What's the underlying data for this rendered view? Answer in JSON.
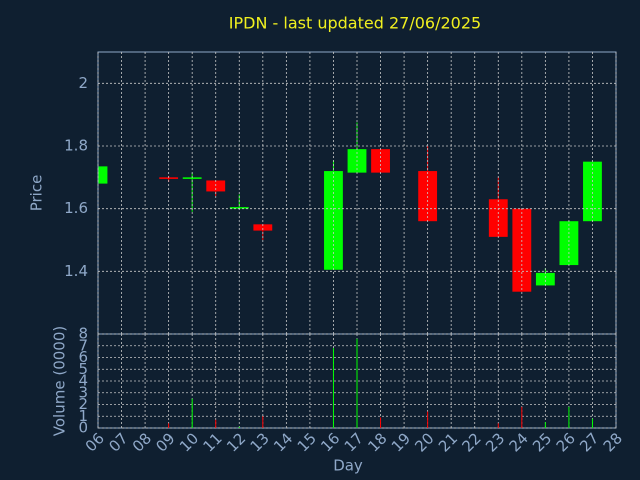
{
  "chart_data": {
    "type": "candlestick",
    "title": "IPDN - last updated 27/06/2025",
    "xlabel": "Day",
    "ylabel": "Price",
    "x": [
      6,
      9,
      10,
      11,
      12,
      13,
      16,
      17,
      18,
      20,
      23,
      24,
      25,
      26,
      27
    ],
    "open": [
      1.68,
      1.7,
      1.695,
      1.69,
      1.6,
      1.55,
      1.405,
      1.715,
      1.79,
      1.72,
      1.63,
      1.6,
      1.355,
      1.42,
      1.56
    ],
    "high": [
      1.735,
      1.705,
      1.715,
      1.69,
      1.645,
      1.55,
      1.755,
      1.875,
      1.79,
      1.8,
      1.7,
      1.6,
      1.41,
      1.56,
      1.75
    ],
    "low": [
      1.68,
      1.685,
      1.59,
      1.64,
      1.6,
      1.5,
      1.405,
      1.715,
      1.715,
      1.56,
      1.51,
      1.335,
      1.355,
      1.42,
      1.56
    ],
    "close": [
      1.735,
      1.695,
      1.7,
      1.655,
      1.605,
      1.53,
      1.72,
      1.79,
      1.715,
      1.56,
      1.51,
      1.335,
      1.395,
      1.56,
      1.75
    ],
    "up_color": "#00ff00",
    "down_color": "#ff0000",
    "ylim": [
      1.2,
      2.1
    ],
    "yticks": [
      1.4,
      1.6,
      1.8,
      2
    ],
    "xlim": [
      6,
      28
    ],
    "xticks": [
      {
        "value": 6,
        "label": "06"
      },
      {
        "value": 7,
        "label": "07"
      },
      {
        "value": 8,
        "label": "08"
      },
      {
        "value": 9,
        "label": "09"
      },
      10,
      11,
      12,
      13,
      14,
      15,
      16,
      17,
      18,
      19,
      20,
      21,
      22,
      23,
      24,
      25,
      26,
      27,
      28
    ],
    "grid": true,
    "volume": {
      "ylabel": "Volume (0000)",
      "values": [
        0,
        0.4,
        2.5,
        0.7,
        0.1,
        1.0,
        6.8,
        7.6,
        0.9,
        1.4,
        0.4,
        1.8,
        0.5,
        1.8,
        0.8
      ],
      "ylim": [
        0,
        8
      ],
      "yticks": [
        0,
        1,
        2,
        3,
        4,
        5,
        6,
        7,
        8
      ]
    }
  }
}
